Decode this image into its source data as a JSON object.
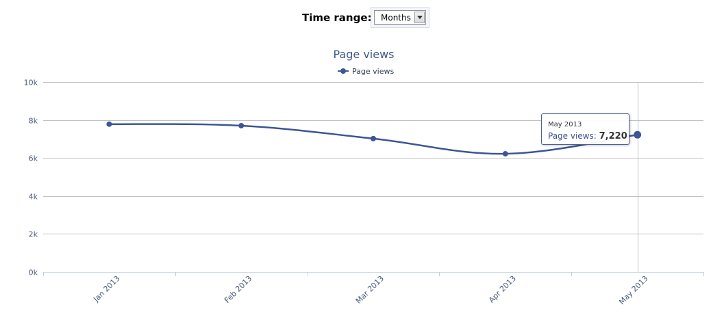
{
  "controls": {
    "time_range_label": "Time range:",
    "time_range_value": "Months"
  },
  "chart_data": {
    "type": "line",
    "title": "Page views",
    "legend": [
      "Page views"
    ],
    "legend_position": "top-center",
    "categories": [
      "Jan 2013",
      "Feb 2013",
      "Mar 2013",
      "Apr 2013",
      "May 2013"
    ],
    "series": [
      {
        "name": "Page views",
        "values": [
          7780,
          7700,
          7020,
          6220,
          7220
        ],
        "color": "#3c5695"
      }
    ],
    "ylim": [
      0,
      10000
    ],
    "yticks": [
      0,
      2000,
      4000,
      6000,
      8000,
      10000
    ],
    "ytick_labels": [
      "0k",
      "2k",
      "4k",
      "6k",
      "8k",
      "10k"
    ],
    "grid": true,
    "tooltip": {
      "category": "May 2013",
      "series_label": "Page views:",
      "value": "7,220"
    }
  }
}
